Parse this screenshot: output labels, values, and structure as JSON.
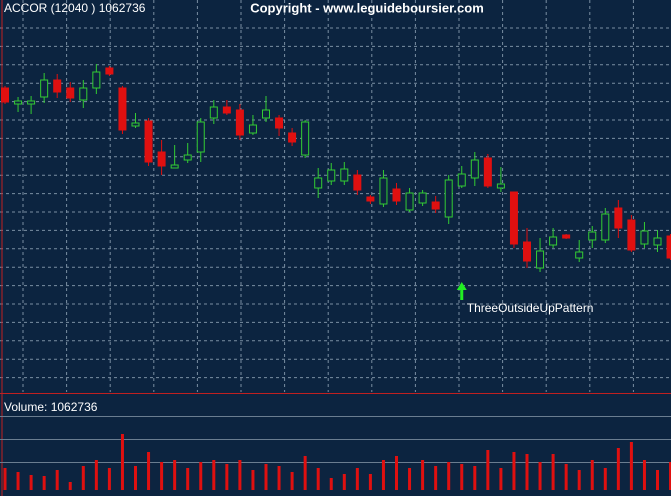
{
  "chart_data": {
    "type": "candlestick",
    "title": "ACCOR (12040 ) 1062736",
    "subtitle": "Copyright - www.leguideboursier.com",
    "volume_label": "Volume: 1062736",
    "annotation": {
      "text": "ThreeOutsideUpPattern",
      "x": 35,
      "color": "#22ee22"
    },
    "up_color": "#33cc33",
    "down_color": "#e01010",
    "volume_color": "#e01010",
    "ylim": [
      0,
      392
    ],
    "volume_ylim": [
      0,
      94
    ],
    "grid": true,
    "open": [
      304,
      288,
      288,
      295,
      312,
      304,
      292,
      304,
      324,
      304,
      266,
      271,
      240,
      224,
      232,
      240,
      274,
      285,
      282,
      259,
      274,
      274,
      259,
      237,
      204,
      211,
      211,
      217,
      195,
      188,
      203,
      182,
      189,
      190,
      175,
      206,
      214,
      234,
      204,
      200,
      150,
      124,
      147,
      157,
      134,
      152,
      152,
      184,
      172,
      148,
      147,
      156
    ],
    "high": [
      306,
      295,
      296,
      319,
      318,
      310,
      312,
      328,
      326,
      306,
      279,
      274,
      252,
      247,
      249,
      274,
      292,
      292,
      288,
      277,
      296,
      277,
      264,
      272,
      224,
      229,
      230,
      222,
      197,
      222,
      209,
      204,
      202,
      196,
      217,
      226,
      240,
      238,
      225,
      200,
      164,
      154,
      164,
      158,
      152,
      166,
      184,
      192,
      177,
      170,
      162,
      158
    ],
    "low": [
      288,
      280,
      278,
      289,
      294,
      290,
      284,
      298,
      316,
      258,
      264,
      226,
      217,
      224,
      229,
      230,
      268,
      277,
      252,
      257,
      270,
      256,
      246,
      234,
      194,
      207,
      207,
      197,
      188,
      185,
      187,
      180,
      186,
      179,
      168,
      204,
      206,
      204,
      200,
      144,
      124,
      120,
      144,
      153,
      130,
      144,
      149,
      154,
      140,
      144,
      140,
      132
    ],
    "close": [
      290,
      291,
      291,
      312,
      300,
      294,
      304,
      320,
      318,
      262,
      269,
      230,
      226,
      227,
      237,
      270,
      285,
      279,
      257,
      267,
      282,
      264,
      250,
      270,
      214,
      222,
      223,
      202,
      191,
      214,
      191,
      199,
      199,
      183,
      212,
      218,
      232,
      206,
      208,
      148,
      131,
      141,
      155,
      154,
      140,
      160,
      178,
      164,
      142,
      161,
      154,
      134
    ],
    "volume": [
      22,
      18,
      15,
      14,
      20,
      8,
      24,
      30,
      22,
      56,
      24,
      38,
      28,
      30,
      22,
      28,
      30,
      26,
      30,
      20,
      26,
      24,
      18,
      34,
      22,
      12,
      16,
      22,
      16,
      30,
      34,
      22,
      30,
      24,
      28,
      26,
      24,
      40,
      22,
      38,
      36,
      28,
      36,
      26,
      20,
      30,
      22,
      42,
      48,
      30,
      20,
      28
    ]
  }
}
